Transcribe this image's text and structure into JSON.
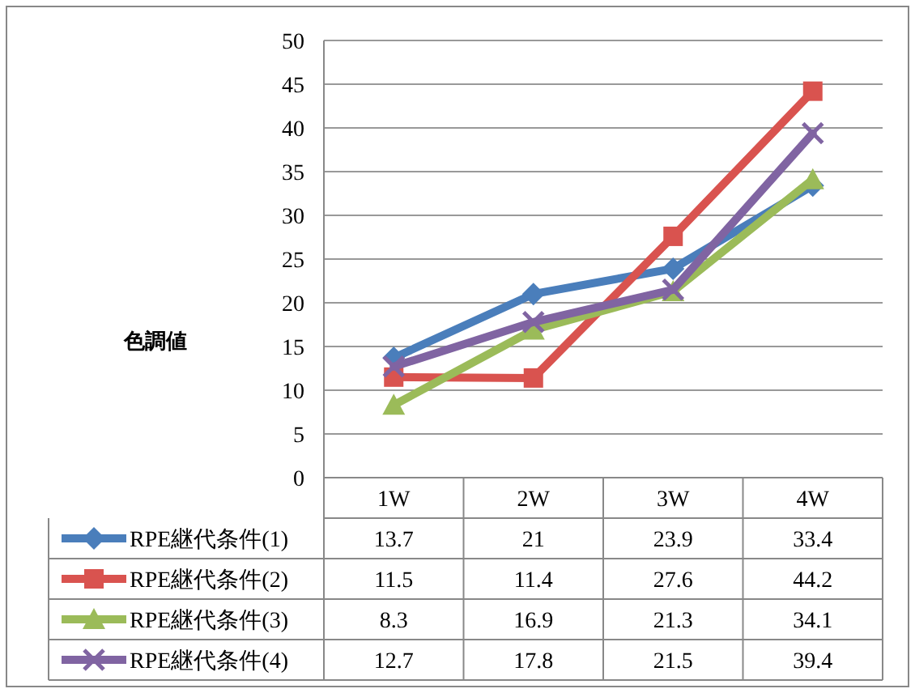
{
  "chart_data": {
    "type": "line",
    "ylabel": "色調値",
    "categories": [
      "1W",
      "2W",
      "3W",
      "4W"
    ],
    "series": [
      {
        "name": "RPE継代条件(1)",
        "color": "#4a7ebb",
        "marker": "diamond",
        "values": [
          13.7,
          21,
          23.9,
          33.4
        ]
      },
      {
        "name": "RPE継代条件(2)",
        "color": "#d9534f",
        "marker": "square",
        "values": [
          11.5,
          11.4,
          27.6,
          44.2
        ]
      },
      {
        "name": "RPE継代条件(3)",
        "color": "#9bbb59",
        "marker": "triangle",
        "values": [
          8.3,
          16.9,
          21.3,
          34.1
        ]
      },
      {
        "name": "RPE継代条件(4)",
        "color": "#8064a2",
        "marker": "cross",
        "values": [
          12.7,
          17.8,
          21.5,
          39.4
        ]
      }
    ],
    "ylim": [
      0,
      50
    ],
    "yticks": [
      0,
      5,
      10,
      15,
      20,
      25,
      30,
      35,
      40,
      45,
      50
    ],
    "grid": "y",
    "legend": "bottom",
    "data_labels": true,
    "line_style": "solid"
  }
}
